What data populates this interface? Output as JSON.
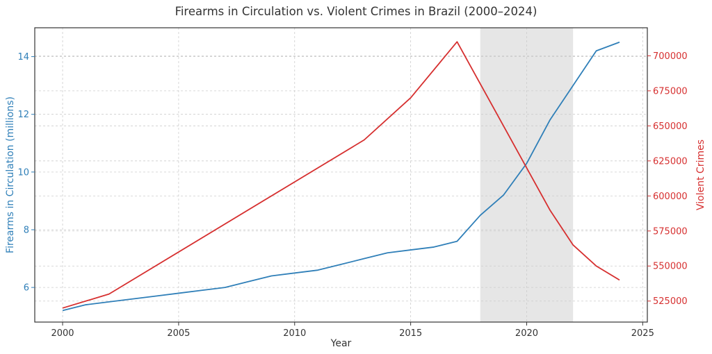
{
  "chart_data": {
    "type": "line",
    "title": "Firearms in Circulation vs. Violent Crimes in Brazil (2000–2024)",
    "xlabel": "Year",
    "ylabel_left": "Firearms in Circulation (millions)",
    "ylabel_right": "Violent Crimes",
    "xlim": [
      1998.8,
      2025.2
    ],
    "ylim_left": [
      4.8,
      15.0
    ],
    "ylim_right": [
      510000,
      720000
    ],
    "x_ticks": [
      2000,
      2005,
      2010,
      2015,
      2020,
      2025
    ],
    "y_left_ticks": [
      6,
      8,
      10,
      12,
      14
    ],
    "y_right_ticks": [
      525000,
      550000,
      575000,
      600000,
      625000,
      650000,
      675000,
      700000
    ],
    "grid": true,
    "shaded_region": {
      "x_start": 2018,
      "x_end": 2022,
      "color": "#e6e6e6"
    },
    "series": [
      {
        "axis": "left",
        "color": "#2f7fb8",
        "x": [
          2000,
          2001,
          2002,
          2003,
          2004,
          2005,
          2006,
          2007,
          2008,
          2009,
          2010,
          2011,
          2012,
          2013,
          2014,
          2015,
          2016,
          2017,
          2018,
          2019,
          2020,
          2021,
          2022,
          2023,
          2024
        ],
        "values": [
          5.2,
          5.4,
          5.5,
          5.6,
          5.7,
          5.8,
          5.9,
          6.0,
          6.2,
          6.4,
          6.5,
          6.6,
          6.8,
          7.0,
          7.2,
          7.3,
          7.4,
          7.6,
          8.5,
          9.2,
          10.3,
          11.8,
          13.0,
          14.2,
          14.5
        ]
      },
      {
        "axis": "right",
        "color": "#d62f2f",
        "x": [
          2000,
          2002,
          2013,
          2015,
          2017,
          2018,
          2019,
          2020,
          2021,
          2022,
          2023,
          2024
        ],
        "values": [
          520000,
          530000,
          640000,
          670000,
          710000,
          680000,
          650000,
          620000,
          590000,
          565000,
          550000,
          540000
        ]
      }
    ]
  }
}
